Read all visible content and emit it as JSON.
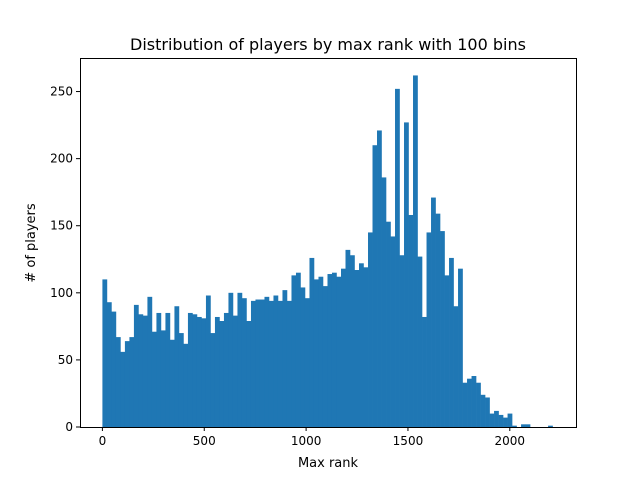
{
  "colors": {
    "bar": "#1f77b4",
    "axes": "#000000",
    "background": "#ffffff"
  },
  "chart_data": {
    "type": "bar",
    "title": "Distribution of players by max rank with 100 bins",
    "xlabel": "Max rank",
    "ylabel": "# of players",
    "xlim": [
      -110,
      2325
    ],
    "ylim": [
      0,
      275
    ],
    "grid": false,
    "legend": "none",
    "bin_start": 0,
    "bin_width": 22.1,
    "x_ticks": [
      0,
      500,
      1000,
      1500,
      2000
    ],
    "x_tick_labels": [
      "0",
      "500",
      "1000",
      "1500",
      "2000"
    ],
    "y_ticks": [
      0,
      50,
      100,
      150,
      200,
      250
    ],
    "y_tick_labels": [
      "0",
      "50",
      "100",
      "150",
      "200",
      "250"
    ],
    "values": [
      110,
      93,
      86,
      67,
      56,
      64,
      67,
      91,
      84,
      83,
      97,
      71,
      85,
      72,
      85,
      65,
      90,
      70,
      62,
      85,
      84,
      82,
      81,
      98,
      70,
      82,
      79,
      85,
      100,
      83,
      100,
      96,
      79,
      94,
      95,
      95,
      97,
      94,
      98,
      94,
      102,
      94,
      113,
      115,
      104,
      96,
      126,
      110,
      112,
      105,
      114,
      115,
      112,
      118,
      132,
      128,
      117,
      122,
      119,
      145,
      210,
      221,
      186,
      153,
      142,
      252,
      128,
      227,
      158,
      262,
      127,
      82,
      145,
      171,
      159,
      146,
      113,
      126,
      90,
      118,
      33,
      36,
      38,
      33,
      24,
      22,
      10,
      12,
      9,
      7,
      10,
      1,
      0,
      2,
      2,
      0,
      0,
      0,
      0,
      1
    ]
  }
}
